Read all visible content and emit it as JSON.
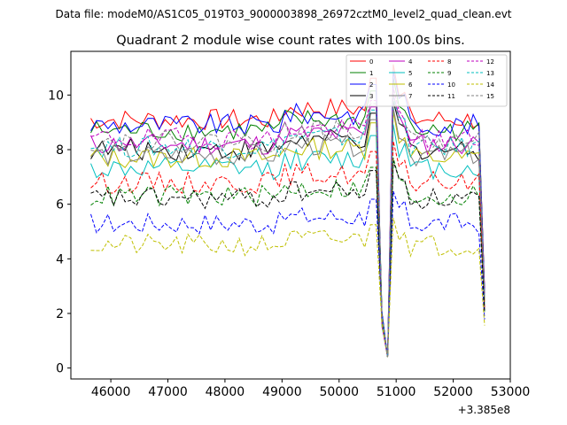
{
  "chart_data": {
    "type": "line",
    "suptitle": "Data file: modeM0/AS1C05_019T03_9000003898_26972cztM0_level2_quad_clean.evt",
    "title": "Quadrant 2 module wise count rates with 100.0s bins.",
    "xlabel": "",
    "ylabel": "",
    "x_offset_label": "+3.385e8",
    "xlim": [
      45300,
      53000
    ],
    "ylim": [
      -0.4,
      11.6
    ],
    "xticks": [
      46000,
      47000,
      48000,
      49000,
      50000,
      51000,
      52000,
      53000
    ],
    "xtick_labels": [
      "46000",
      "47000",
      "48000",
      "49000",
      "50000",
      "51000",
      "52000",
      "53000"
    ],
    "yticks": [
      0,
      2,
      4,
      6,
      8,
      10
    ],
    "ytick_labels": [
      "0",
      "2",
      "4",
      "6",
      "8",
      "10"
    ],
    "legend_location": "top-right",
    "series": [
      {
        "name": "0",
        "color": "#ff0000",
        "style": "solid",
        "level": 9.1
      },
      {
        "name": "1",
        "color": "#008000",
        "style": "solid",
        "level": 8.7
      },
      {
        "name": "2",
        "color": "#0000ff",
        "style": "solid",
        "level": 8.9
      },
      {
        "name": "3",
        "color": "#000000",
        "style": "solid",
        "level": 8.0
      },
      {
        "name": "4",
        "color": "#bf00bf",
        "style": "solid",
        "level": 8.2
      },
      {
        "name": "5",
        "color": "#00bfbf",
        "style": "solid",
        "level": 7.3
      },
      {
        "name": "6",
        "color": "#bfbf00",
        "style": "solid",
        "level": 7.7
      },
      {
        "name": "7",
        "color": "#808080",
        "style": "solid",
        "level": 7.8
      },
      {
        "name": "8",
        "color": "#ff0000",
        "style": "dashed",
        "level": 6.8
      },
      {
        "name": "9",
        "color": "#008000",
        "style": "dashed",
        "level": 6.3
      },
      {
        "name": "10",
        "color": "#0000ff",
        "style": "dashed",
        "level": 5.3
      },
      {
        "name": "11",
        "color": "#000000",
        "style": "dashed",
        "level": 6.2
      },
      {
        "name": "12",
        "color": "#bf00bf",
        "style": "dashed",
        "level": 8.4
      },
      {
        "name": "13",
        "color": "#00bfbf",
        "style": "dashed",
        "level": 8.1
      },
      {
        "name": "14",
        "color": "#bfbf00",
        "style": "dashed",
        "level": 4.5
      },
      {
        "name": "15",
        "color": "#808080",
        "style": "dashed",
        "level": 8.3
      }
    ]
  }
}
